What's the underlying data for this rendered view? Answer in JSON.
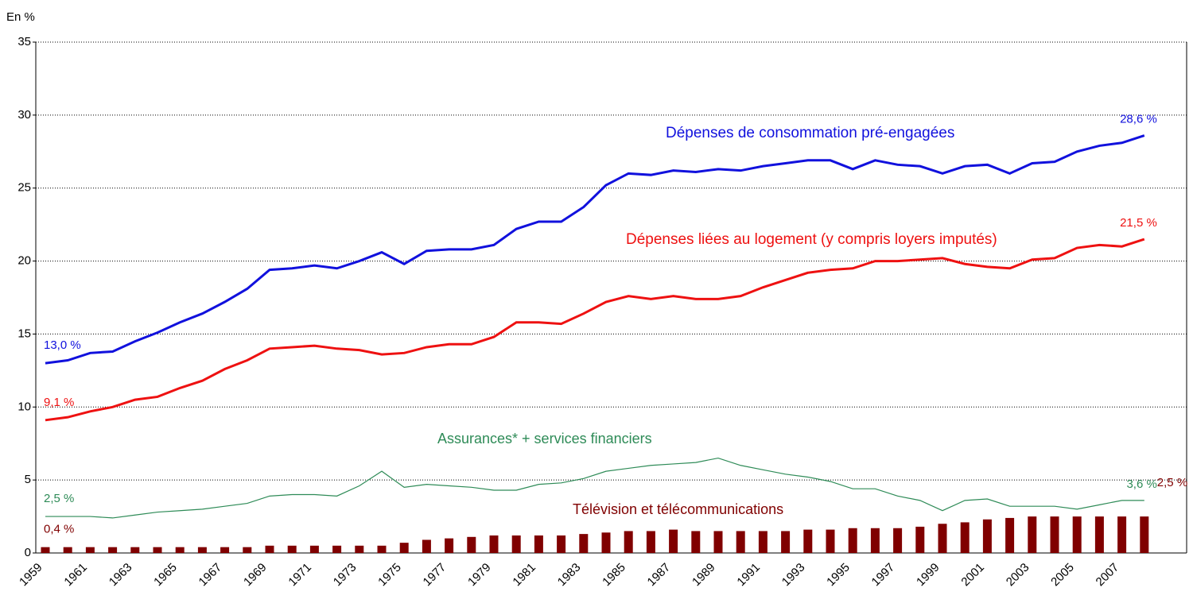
{
  "chart_data": {
    "type": "line",
    "ylabel": "En %",
    "categories": [
      "1959",
      null,
      "1961",
      null,
      "1963",
      null,
      "1965",
      null,
      "1967",
      null,
      "1969",
      null,
      "1971",
      null,
      "1973",
      null,
      "1975",
      null,
      "1977",
      null,
      "1979",
      null,
      "1981",
      null,
      "1983",
      null,
      "1985",
      null,
      "1987",
      null,
      "1989",
      null,
      "1991",
      null,
      "1993",
      null,
      "1995",
      null,
      "1997",
      null,
      "1999",
      null,
      "2001",
      null,
      "2003",
      null,
      "2005",
      null,
      "2007",
      null
    ],
    "ylim": [
      0,
      35
    ],
    "yticks": [
      0,
      5,
      10,
      15,
      20,
      25,
      30,
      35
    ],
    "grid": true,
    "series": [
      {
        "name": "Dépenses de consommation pré-engagées",
        "type": "line",
        "color": "#1111dd",
        "values": [
          13.0,
          13.2,
          13.7,
          13.8,
          14.5,
          15.1,
          15.8,
          16.4,
          17.2,
          18.1,
          19.4,
          19.5,
          19.7,
          19.5,
          20.0,
          20.6,
          19.8,
          20.7,
          20.8,
          20.8,
          21.1,
          22.2,
          22.7,
          22.7,
          23.7,
          25.2,
          26.0,
          25.9,
          26.2,
          26.1,
          26.3,
          26.2,
          26.5,
          26.7,
          26.9,
          26.9,
          26.3,
          26.9,
          26.6,
          26.5,
          26.0,
          26.5,
          26.6,
          26.0,
          26.7,
          26.8,
          27.5,
          27.9,
          28.1,
          28.6
        ],
        "value_labels": [
          "13,0 %",
          null,
          null,
          null,
          null,
          null,
          null,
          null,
          null,
          null,
          null,
          null,
          null,
          null,
          null,
          null,
          null,
          null,
          null,
          null,
          null,
          null,
          null,
          null,
          null,
          null,
          null,
          null,
          null,
          null,
          null,
          null,
          null,
          null,
          null,
          null,
          null,
          null,
          null,
          null,
          null,
          null,
          null,
          null,
          null,
          null,
          null,
          null,
          null,
          "28,6 %"
        ]
      },
      {
        "name": "Dépenses liées au logement (y compris loyers imputés)",
        "type": "line",
        "color": "#ee1111",
        "values": [
          9.1,
          9.3,
          9.7,
          10.0,
          10.5,
          10.7,
          11.3,
          11.8,
          12.6,
          13.2,
          14.0,
          14.1,
          14.2,
          14.0,
          13.9,
          13.6,
          13.7,
          14.1,
          14.3,
          14.3,
          14.8,
          15.8,
          15.8,
          15.7,
          16.4,
          17.2,
          17.6,
          17.4,
          17.6,
          17.4,
          17.4,
          17.6,
          18.2,
          18.7,
          19.2,
          19.4,
          19.5,
          20.0,
          20.0,
          20.1,
          20.2,
          19.8,
          19.6,
          19.5,
          20.1,
          20.2,
          20.9,
          21.1,
          21.0,
          21.5
        ],
        "value_labels": [
          "9,1 %",
          null,
          null,
          null,
          null,
          null,
          null,
          null,
          null,
          null,
          null,
          null,
          null,
          null,
          null,
          null,
          null,
          null,
          null,
          null,
          null,
          null,
          null,
          null,
          null,
          null,
          null,
          null,
          null,
          null,
          null,
          null,
          null,
          null,
          null,
          null,
          null,
          null,
          null,
          null,
          null,
          null,
          null,
          null,
          null,
          null,
          null,
          null,
          null,
          "21,5 %"
        ]
      },
      {
        "name": "Assurances* + services financiers",
        "type": "line",
        "color": "#2e8b57",
        "values": [
          2.5,
          2.5,
          2.5,
          2.4,
          2.6,
          2.8,
          2.9,
          3.0,
          3.2,
          3.4,
          3.9,
          4.0,
          4.0,
          3.9,
          4.6,
          5.6,
          4.5,
          4.7,
          4.6,
          4.5,
          4.3,
          4.3,
          4.7,
          4.8,
          5.1,
          5.6,
          5.8,
          6.0,
          6.1,
          6.2,
          6.5,
          6.0,
          5.7,
          5.4,
          5.2,
          4.9,
          4.4,
          4.4,
          3.9,
          3.6,
          2.9,
          3.6,
          3.7,
          3.2,
          3.2,
          3.2,
          3.0,
          3.3,
          3.6,
          3.6
        ],
        "value_labels": [
          "2,5 %",
          null,
          null,
          null,
          null,
          null,
          null,
          null,
          null,
          null,
          null,
          null,
          null,
          null,
          null,
          null,
          null,
          null,
          null,
          null,
          null,
          null,
          null,
          null,
          null,
          null,
          null,
          null,
          null,
          null,
          null,
          null,
          null,
          null,
          null,
          null,
          null,
          null,
          null,
          null,
          null,
          null,
          null,
          null,
          null,
          null,
          null,
          null,
          null,
          "3,6 %"
        ]
      },
      {
        "name": "Télévision et télécommunications",
        "type": "bar",
        "color": "#800000",
        "values": [
          0.4,
          0.4,
          0.4,
          0.4,
          0.4,
          0.4,
          0.4,
          0.4,
          0.4,
          0.4,
          0.5,
          0.5,
          0.5,
          0.5,
          0.5,
          0.5,
          0.7,
          0.9,
          1.0,
          1.1,
          1.2,
          1.2,
          1.2,
          1.2,
          1.3,
          1.4,
          1.5,
          1.5,
          1.6,
          1.5,
          1.5,
          1.5,
          1.5,
          1.5,
          1.6,
          1.6,
          1.7,
          1.7,
          1.7,
          1.8,
          2.0,
          2.1,
          2.3,
          2.4,
          2.5,
          2.5,
          2.5,
          2.5,
          2.5,
          2.5
        ],
        "value_labels": [
          "0,4 %",
          null,
          null,
          null,
          null,
          null,
          null,
          null,
          null,
          null,
          null,
          null,
          null,
          null,
          null,
          null,
          null,
          null,
          null,
          null,
          null,
          null,
          null,
          null,
          null,
          null,
          null,
          null,
          null,
          null,
          null,
          null,
          null,
          null,
          null,
          null,
          null,
          null,
          null,
          null,
          null,
          null,
          null,
          null,
          null,
          null,
          null,
          null,
          null,
          "2,5 %"
        ]
      }
    ]
  }
}
